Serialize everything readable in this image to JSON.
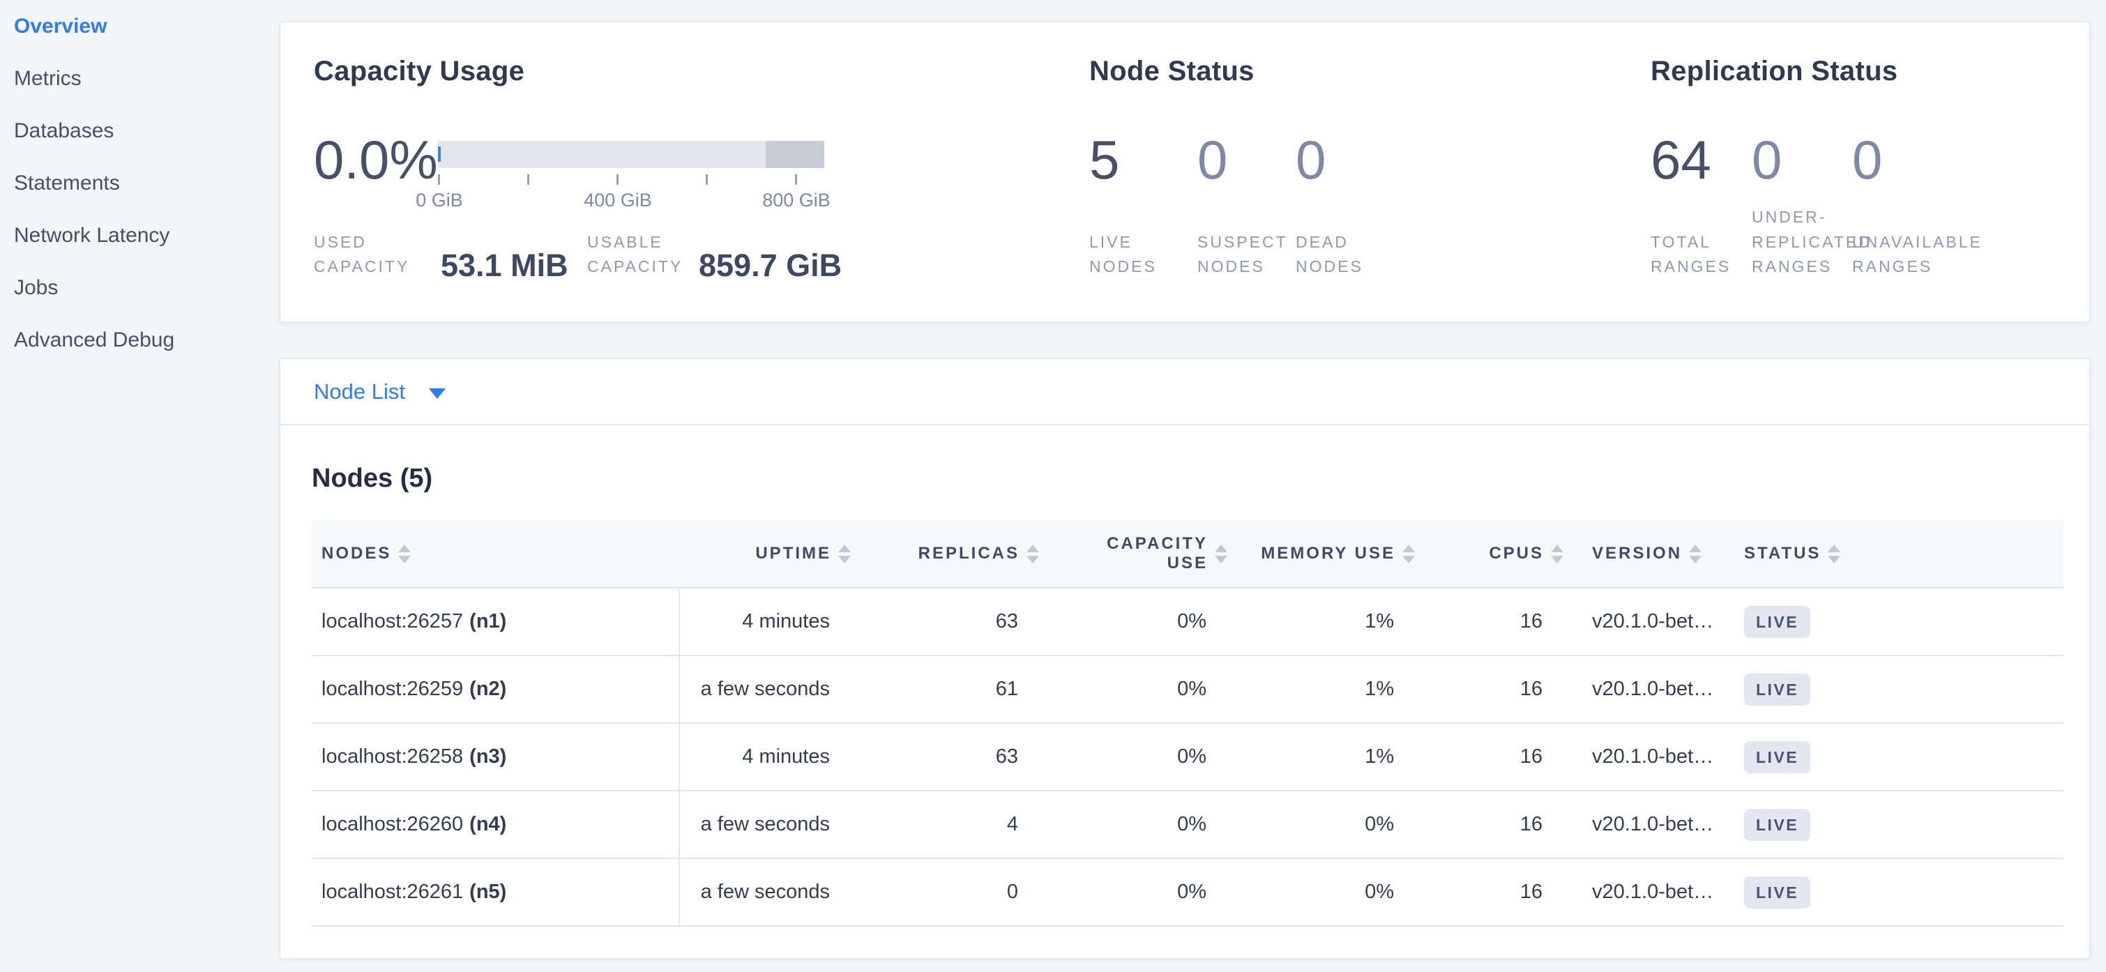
{
  "sidebar": {
    "items": [
      {
        "label": "Overview",
        "active": true
      },
      {
        "label": "Metrics",
        "active": false
      },
      {
        "label": "Databases",
        "active": false
      },
      {
        "label": "Statements",
        "active": false
      },
      {
        "label": "Network Latency",
        "active": false
      },
      {
        "label": "Jobs",
        "active": false
      },
      {
        "label": "Advanced Debug",
        "active": false
      }
    ]
  },
  "capacity": {
    "title": "Capacity Usage",
    "percent": "0.0%",
    "axis_labels": [
      "0 GiB",
      "400 GiB",
      "800 GiB"
    ],
    "axis_range_gib": [
      0,
      866
    ],
    "dark_segment_start_gib": 734,
    "used_label": "USED CAPACITY",
    "used_value": "53.1 MiB",
    "usable_label": "USABLE CAPACITY",
    "usable_value": "859.7 GiB"
  },
  "node_status": {
    "title": "Node Status",
    "metrics": [
      {
        "value": "5",
        "label": "LIVE NODES",
        "primary": true
      },
      {
        "value": "0",
        "label": "SUSPECT NODES",
        "primary": false
      },
      {
        "value": "0",
        "label": "DEAD NODES",
        "primary": false
      }
    ]
  },
  "replication": {
    "title": "Replication Status",
    "metrics": [
      {
        "value": "64",
        "label": "TOTAL RANGES",
        "primary": true
      },
      {
        "value": "0",
        "label": "UNDER-REPLICATED RANGES",
        "primary": false
      },
      {
        "value": "0",
        "label": "UNAVAILABLE RANGES",
        "primary": false
      }
    ]
  },
  "node_list": {
    "label": "Node List"
  },
  "nodes_table": {
    "heading": "Nodes (5)",
    "columns": [
      {
        "label": "NODES"
      },
      {
        "label": "UPTIME"
      },
      {
        "label": "REPLICAS"
      },
      {
        "label": "CAPACITY USE"
      },
      {
        "label": "MEMORY USE"
      },
      {
        "label": "CPUS"
      },
      {
        "label": "VERSION"
      },
      {
        "label": "STATUS"
      }
    ],
    "rows": [
      {
        "address": "localhost:26257",
        "id": "(n1)",
        "uptime": "4 minutes",
        "replicas": "63",
        "capacity_use": "0%",
        "memory_use": "1%",
        "cpus": "16",
        "version": "v20.1.0-bet…",
        "status": "LIVE"
      },
      {
        "address": "localhost:26259",
        "id": "(n2)",
        "uptime": "a few seconds",
        "replicas": "61",
        "capacity_use": "0%",
        "memory_use": "1%",
        "cpus": "16",
        "version": "v20.1.0-bet…",
        "status": "LIVE"
      },
      {
        "address": "localhost:26258",
        "id": "(n3)",
        "uptime": "4 minutes",
        "replicas": "63",
        "capacity_use": "0%",
        "memory_use": "1%",
        "cpus": "16",
        "version": "v20.1.0-bet…",
        "status": "LIVE"
      },
      {
        "address": "localhost:26260",
        "id": "(n4)",
        "uptime": "a few seconds",
        "replicas": "4",
        "capacity_use": "0%",
        "memory_use": "0%",
        "cpus": "16",
        "version": "v20.1.0-bet…",
        "status": "LIVE"
      },
      {
        "address": "localhost:26261",
        "id": "(n5)",
        "uptime": "a few seconds",
        "replicas": "0",
        "capacity_use": "0%",
        "memory_use": "0%",
        "cpus": "16",
        "version": "v20.1.0-bet…",
        "status": "LIVE"
      }
    ]
  },
  "colors": {
    "accent_blue": "#2e7cf0",
    "page_bg": "#f4f5f9",
    "badge_bg": "#e4e7f2",
    "gauge_track": "#e3e5ec",
    "gauge_dark_segment": "#c8ccd7",
    "gauge_used_marker": "#3f7df0"
  }
}
